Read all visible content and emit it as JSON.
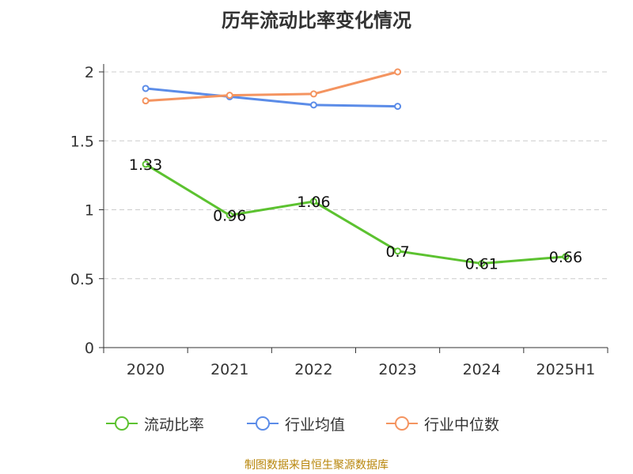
{
  "chart_data": {
    "type": "line",
    "title": "历年流动比率变化情况",
    "categories": [
      "2020",
      "2021",
      "2022",
      "2023",
      "2024",
      "2025H1"
    ],
    "ylim": [
      0,
      2
    ],
    "yticks": [
      "0",
      "0.5",
      "1",
      "1.5",
      "2"
    ],
    "grid": true,
    "legend_position": "bottom",
    "series": [
      {
        "name": "流动比率",
        "color": "#5cc230",
        "values": [
          1.33,
          0.96,
          1.06,
          0.7,
          0.61,
          0.66
        ],
        "labels": [
          "1.33",
          "0.96",
          "1.06",
          "0.7",
          "0.61",
          "0.66"
        ]
      },
      {
        "name": "行业均值",
        "color": "#5b8ce8",
        "values": [
          1.88,
          1.82,
          1.76,
          1.75,
          null,
          null
        ]
      },
      {
        "name": "行业中位数",
        "color": "#f49460",
        "values": [
          1.79,
          1.83,
          1.84,
          2.0,
          null,
          null
        ]
      }
    ]
  },
  "source_note": "制图数据来自恒生聚源数据库"
}
